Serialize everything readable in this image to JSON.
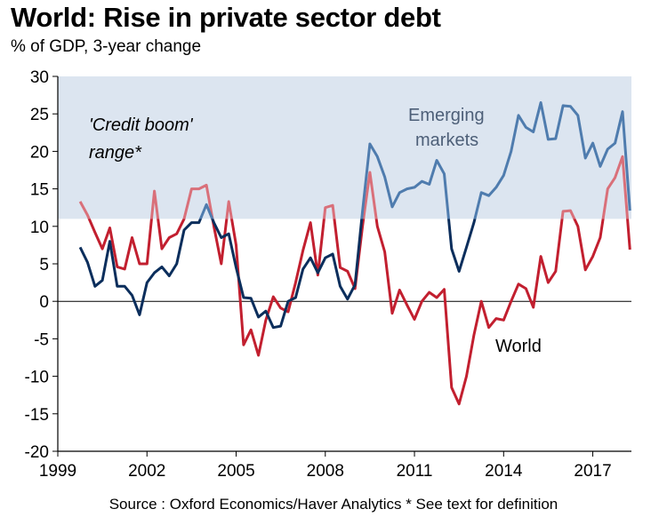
{
  "title": "World: Rise in private sector debt",
  "subtitle": "% of GDP, 3-year change",
  "source": "Source : Oxford Economics/Haver Analytics  * See text for definition",
  "colors": {
    "band": "#dce5f0",
    "emerging": "#4f7cae",
    "emerging_overlap": "#0b2e5c",
    "world": "#c21f2f",
    "world_in_band": "#d9707a",
    "annotation_emerging": "#4d5f78"
  },
  "chart_data": {
    "type": "line",
    "title": "World: Rise in private sector debt",
    "subtitle": "% of GDP, 3-year change",
    "xlim": [
      1999,
      2018.3
    ],
    "ylim": [
      -20,
      30
    ],
    "x_ticks": [
      1999,
      2002,
      2005,
      2008,
      2011,
      2014,
      2017
    ],
    "y_ticks": [
      -20,
      -15,
      -10,
      -5,
      0,
      5,
      10,
      15,
      20,
      25,
      30
    ],
    "band": {
      "from": 11,
      "to": 30,
      "label_line1": "'Credit boom'",
      "label_line2": "range*"
    },
    "grid": false,
    "series": [
      {
        "name": "Emerging markets",
        "label_line1": "Emerging",
        "label_line2": "markets",
        "x": [
          1999.75,
          2000.0,
          2000.25,
          2000.5,
          2000.75,
          2001.0,
          2001.25,
          2001.5,
          2001.75,
          2002.0,
          2002.25,
          2002.5,
          2002.75,
          2003.0,
          2003.25,
          2003.5,
          2003.75,
          2004.0,
          2004.25,
          2004.5,
          2004.75,
          2005.0,
          2005.25,
          2005.5,
          2005.75,
          2006.0,
          2006.25,
          2006.5,
          2006.75,
          2007.0,
          2007.25,
          2007.5,
          2007.75,
          2008.0,
          2008.25,
          2008.5,
          2008.75,
          2009.0,
          2009.25,
          2009.5,
          2009.75,
          2010.0,
          2010.25,
          2010.5,
          2010.75,
          2011.0,
          2011.25,
          2011.5,
          2011.75,
          2012.0,
          2012.25,
          2012.5,
          2012.75,
          2013.0,
          2013.25,
          2013.5,
          2013.75,
          2014.0,
          2014.25,
          2014.5,
          2014.75,
          2015.0,
          2015.25,
          2015.5,
          2015.75,
          2016.0,
          2016.25,
          2016.5,
          2016.75,
          2017.0,
          2017.25,
          2017.5,
          2017.75,
          2018.0,
          2018.25
        ],
        "values": [
          7.2,
          5.2,
          2.0,
          2.8,
          8.0,
          2.0,
          2.0,
          0.8,
          -1.8,
          2.5,
          3.8,
          4.6,
          3.4,
          5.0,
          9.5,
          10.5,
          10.5,
          12.9,
          10.5,
          8.5,
          9.0,
          4.5,
          0.5,
          0.4,
          -2.1,
          -1.3,
          -3.5,
          -3.3,
          0.0,
          0.5,
          4.3,
          5.8,
          3.8,
          5.8,
          6.3,
          2.0,
          0.3,
          2.2,
          12.0,
          21.0,
          19.3,
          16.6,
          12.6,
          14.5,
          15.0,
          15.2,
          16.0,
          15.6,
          18.8,
          17.0,
          7.0,
          4.0,
          7.2,
          10.5,
          14.5,
          14.1,
          15.2,
          16.8,
          20.0,
          24.8,
          23.2,
          22.6,
          26.5,
          21.6,
          21.7,
          26.1,
          26.0,
          24.8,
          19.1,
          21.1,
          18.0,
          20.3,
          21.1,
          25.3,
          12.1
        ]
      },
      {
        "name": "World",
        "label": "World",
        "x": [
          1999.75,
          2000.0,
          2000.25,
          2000.5,
          2000.75,
          2001.0,
          2001.25,
          2001.5,
          2001.75,
          2002.0,
          2002.25,
          2002.5,
          2002.75,
          2003.0,
          2003.25,
          2003.5,
          2003.75,
          2004.0,
          2004.25,
          2004.5,
          2004.75,
          2005.0,
          2005.25,
          2005.5,
          2005.75,
          2006.0,
          2006.25,
          2006.5,
          2006.75,
          2007.0,
          2007.25,
          2007.5,
          2007.75,
          2008.0,
          2008.25,
          2008.5,
          2008.75,
          2009.0,
          2009.25,
          2009.5,
          2009.75,
          2010.0,
          2010.25,
          2010.5,
          2010.75,
          2011.0,
          2011.25,
          2011.5,
          2011.75,
          2012.0,
          2012.25,
          2012.5,
          2012.75,
          2013.0,
          2013.25,
          2013.5,
          2013.75,
          2014.0,
          2014.25,
          2014.5,
          2014.75,
          2015.0,
          2015.25,
          2015.5,
          2015.75,
          2016.0,
          2016.25,
          2016.5,
          2016.75,
          2017.0,
          2017.25,
          2017.5,
          2017.75,
          2018.0,
          2018.25
        ],
        "values": [
          13.3,
          11.5,
          9.2,
          7.0,
          9.8,
          4.6,
          4.3,
          8.5,
          5.0,
          5.0,
          14.7,
          7.0,
          8.5,
          9.0,
          11.0,
          15.0,
          15.0,
          15.5,
          10.0,
          5.0,
          13.3,
          7.5,
          -5.8,
          -3.8,
          -7.2,
          -2.5,
          0.6,
          -0.9,
          -1.4,
          2.5,
          6.8,
          10.5,
          3.5,
          12.5,
          12.8,
          4.5,
          4.0,
          1.7,
          10.0,
          17.2,
          10.0,
          6.6,
          -1.6,
          1.5,
          -0.5,
          -2.4,
          0.0,
          1.2,
          0.5,
          1.6,
          -11.5,
          -13.7,
          -10.0,
          -4.5,
          0.0,
          -3.5,
          -2.3,
          -2.5,
          0.0,
          2.3,
          1.7,
          -0.8,
          6.0,
          2.5,
          4.0,
          12.0,
          12.1,
          10.0,
          4.2,
          6.0,
          8.5,
          15.0,
          16.5,
          19.3,
          6.9
        ]
      }
    ]
  }
}
